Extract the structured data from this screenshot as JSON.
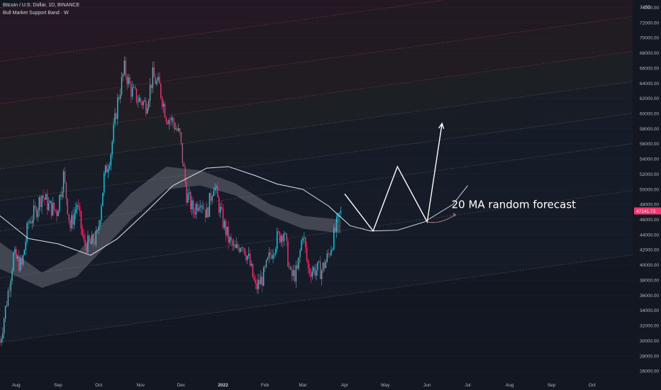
{
  "header": {
    "title": "Bitcoin / U.S. Dollar, 1D, BINANCE",
    "indicator": "Bull Market Support Band · W"
  },
  "colors": {
    "background": "#131722",
    "candle_up": "#26c6da",
    "candle_down": "#f23670",
    "band_fill": "#b2b5be",
    "ma_line": "#e0e3eb",
    "forecast": "#ffffff",
    "price_tag": "#f23670",
    "channel_bands": [
      "#7a1f3a",
      "#6b2a2a",
      "#5e3a28",
      "#4a4a2a",
      "#2a3a3a",
      "#1f3a44"
    ]
  },
  "chart_data": {
    "type": "candlestick",
    "title": "Bitcoin / U.S. Dollar, 1D, BINANCE",
    "yaxis": {
      "unit": "USD",
      "ylim": [
        25000,
        75000
      ],
      "ticks": [
        "74000.00",
        "72000.00",
        "70000.00",
        "68000.00",
        "66000.00",
        "64000.00",
        "62000.00",
        "60000.00",
        "58000.00",
        "56000.00",
        "54000.00",
        "52000.00",
        "50000.00",
        "48000.00",
        "46000.00",
        "44000.00",
        "42000.00",
        "40000.00",
        "38000.00",
        "36000.00",
        "34000.00",
        "32000.00",
        "30000.00",
        "28000.00",
        "26000.00"
      ],
      "label": "USD",
      "last_price": "47141.73",
      "last_price_display": "47141.73",
      "last_price_value": 47141.73
    },
    "xaxis": {
      "ticks": [
        "Aug",
        "Sep",
        "Oct",
        "Nov",
        "Dec",
        "2022",
        "Feb",
        "Mar",
        "Apr",
        "May",
        "Jun",
        "Jul",
        "Aug",
        "Sep",
        "Oct"
      ],
      "bold_tick": "2022",
      "start": "2021-07-20",
      "end": "2022-10-31"
    },
    "candles_close": [
      [
        "2021-07-20",
        29800
      ],
      [
        "2021-07-25",
        35300
      ],
      [
        "2021-07-30",
        41200
      ],
      [
        "2021-08-05",
        39800
      ],
      [
        "2021-08-10",
        45600
      ],
      [
        "2021-08-15",
        47000
      ],
      [
        "2021-08-20",
        49300
      ],
      [
        "2021-08-25",
        47800
      ],
      [
        "2021-08-31",
        47100
      ],
      [
        "2021-09-05",
        51800
      ],
      [
        "2021-09-10",
        45000
      ],
      [
        "2021-09-15",
        48100
      ],
      [
        "2021-09-20",
        42800
      ],
      [
        "2021-09-25",
        42700
      ],
      [
        "2021-09-30",
        43800
      ],
      [
        "2021-10-05",
        51500
      ],
      [
        "2021-10-10",
        55000
      ],
      [
        "2021-10-15",
        61600
      ],
      [
        "2021-10-20",
        65900
      ],
      [
        "2021-10-25",
        63100
      ],
      [
        "2021-10-30",
        61900
      ],
      [
        "2021-11-05",
        61200
      ],
      [
        "2021-11-10",
        64900
      ],
      [
        "2021-11-15",
        63500
      ],
      [
        "2021-11-20",
        59700
      ],
      [
        "2021-11-25",
        58900
      ],
      [
        "2021-11-30",
        57000
      ],
      [
        "2021-12-05",
        49400
      ],
      [
        "2021-12-10",
        47100
      ],
      [
        "2021-12-15",
        48900
      ],
      [
        "2021-12-20",
        46700
      ],
      [
        "2021-12-25",
        50800
      ],
      [
        "2021-12-31",
        46300
      ],
      [
        "2022-01-05",
        43400
      ],
      [
        "2022-01-10",
        41800
      ],
      [
        "2022-01-15",
        43100
      ],
      [
        "2022-01-20",
        40700
      ],
      [
        "2022-01-25",
        36900
      ],
      [
        "2022-01-31",
        38500
      ],
      [
        "2022-02-05",
        41400
      ],
      [
        "2022-02-10",
        43500
      ],
      [
        "2022-02-15",
        44500
      ],
      [
        "2022-02-20",
        38400
      ],
      [
        "2022-02-25",
        39100
      ],
      [
        "2022-03-01",
        44400
      ],
      [
        "2022-03-05",
        39400
      ],
      [
        "2022-03-10",
        39400
      ],
      [
        "2022-03-15",
        39300
      ],
      [
        "2022-03-20",
        41300
      ],
      [
        "2022-03-25",
        44500
      ],
      [
        "2022-03-29",
        47141.73
      ]
    ],
    "series": [
      {
        "name": "Bull Market Support Band",
        "type": "band"
      },
      {
        "name": "20 MA",
        "type": "line"
      }
    ],
    "channel_levels_at_start": [
      29800,
      38300,
      44500,
      48500,
      52700,
      56700,
      61300,
      66900,
      74000
    ],
    "channel_slope_per_year": 9000,
    "annotations": [
      {
        "text": "20 MA random forecast"
      }
    ],
    "forecast_path": [
      [
        "2022-04-01",
        49400
      ],
      [
        "2022-04-22",
        44500
      ],
      [
        "2022-05-10",
        53000
      ],
      [
        "2022-06-01",
        45700
      ],
      [
        "2022-06-12",
        58700
      ]
    ]
  }
}
